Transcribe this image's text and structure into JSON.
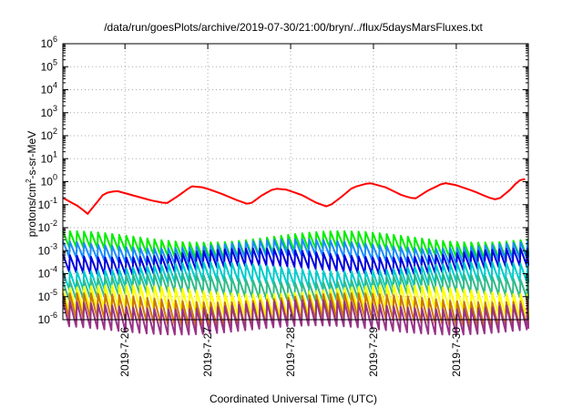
{
  "chart_data": {
    "type": "line",
    "title": "/data/run/goesPlots/archive/2019-07-30/21:00/bryn/../flux/5daysMarsFluxes.txt",
    "xlabel": "Coordinated Universal Time (UTC)",
    "ylabel": "protons/cm²-s-sr-MeV",
    "ylabel_base": "protons/cm",
    "ylabel_sup": "2",
    "ylabel_rest": "-s-sr-MeV",
    "yscale": "log",
    "ylim": [
      1e-06,
      1000000.0
    ],
    "xlim_days": [
      25.25,
      30.87
    ],
    "x_ticks": [
      "2019-7-26",
      "2019-7-27",
      "2019-7-28",
      "2019-7-29",
      "2019-7-30"
    ],
    "y_ticks": [
      {
        "base": "10",
        "exp": "-6"
      },
      {
        "base": "10",
        "exp": "-5"
      },
      {
        "base": "10",
        "exp": "-4"
      },
      {
        "base": "10",
        "exp": "-3"
      },
      {
        "base": "10",
        "exp": "-2"
      },
      {
        "base": "10",
        "exp": "-1"
      },
      {
        "base": "10",
        "exp": "0"
      },
      {
        "base": "10",
        "exp": "1"
      },
      {
        "base": "10",
        "exp": "2"
      },
      {
        "base": "10",
        "exp": "3"
      },
      {
        "base": "10",
        "exp": "4"
      },
      {
        "base": "10",
        "exp": "5"
      },
      {
        "base": "10",
        "exp": "6"
      }
    ],
    "grid": true,
    "legend": "none",
    "series": [
      {
        "color": "#ff0000",
        "kind": "smooth_cycle",
        "anchors_log10": [
          [
            25.25,
            -0.7
          ],
          [
            25.45,
            -1.1
          ],
          [
            25.55,
            -1.4
          ],
          [
            25.75,
            -0.5
          ],
          [
            25.9,
            -0.4
          ],
          [
            26.1,
            -0.6
          ],
          [
            26.3,
            -0.8
          ],
          [
            26.5,
            -0.95
          ],
          [
            26.65,
            -0.6
          ],
          [
            26.8,
            -0.2
          ],
          [
            26.95,
            -0.25
          ],
          [
            27.15,
            -0.5
          ],
          [
            27.35,
            -0.8
          ],
          [
            27.5,
            -1.0
          ],
          [
            27.65,
            -0.6
          ],
          [
            27.8,
            -0.3
          ],
          [
            27.95,
            -0.35
          ],
          [
            28.15,
            -0.6
          ],
          [
            28.3,
            -0.9
          ],
          [
            28.45,
            -1.1
          ],
          [
            28.6,
            -0.7
          ],
          [
            28.75,
            -0.25
          ],
          [
            28.95,
            -0.05
          ],
          [
            29.15,
            -0.25
          ],
          [
            29.35,
            -0.6
          ],
          [
            29.5,
            -0.75
          ],
          [
            29.65,
            -0.4
          ],
          [
            29.85,
            -0.05
          ],
          [
            30.0,
            -0.15
          ],
          [
            30.2,
            -0.4
          ],
          [
            30.4,
            -0.7
          ],
          [
            30.5,
            -0.8
          ],
          [
            30.65,
            -0.35
          ],
          [
            30.75,
            0.05
          ],
          [
            30.87,
            0.15
          ]
        ],
        "sawtooth": 0.45
      },
      {
        "color": "#00ee00",
        "kind": "sawtooth",
        "base_log10": -2.4,
        "amplitude": 0.7,
        "drift": 0.25
      },
      {
        "color": "#1a8cff",
        "kind": "sawtooth",
        "base_log10": -2.7,
        "amplitude": 0.7,
        "drift": 0.2
      },
      {
        "color": "#0000dd",
        "kind": "sawtooth",
        "base_log10": -3.1,
        "amplitude": 0.75,
        "drift": 0.2
      },
      {
        "color": "#00cccc",
        "kind": "sawtooth",
        "base_log10": -3.7,
        "amplitude": 0.8,
        "drift": 0.2
      },
      {
        "color": "#33bb88",
        "kind": "sawtooth",
        "base_log10": -4.2,
        "amplitude": 0.8,
        "drift": 0.2
      },
      {
        "color": "#ffff00",
        "kind": "sawtooth",
        "base_log10": -4.7,
        "amplitude": 1.0,
        "drift": 0.2
      },
      {
        "color": "#cc7700",
        "kind": "sawtooth",
        "base_log10": -5.05,
        "amplitude": 1.1,
        "drift": 0.2
      },
      {
        "color": "#993388",
        "kind": "sawtooth",
        "base_log10": -5.35,
        "amplitude": 1.1,
        "drift": 0.2
      }
    ]
  }
}
